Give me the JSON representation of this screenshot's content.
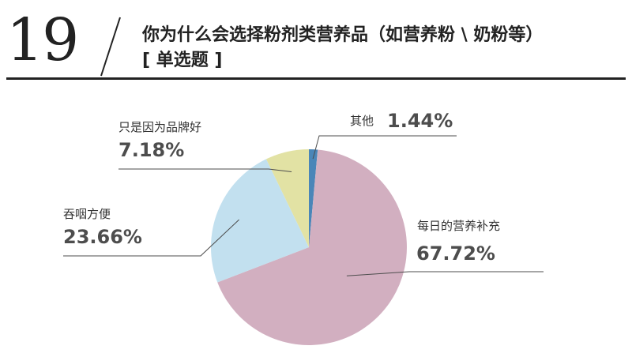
{
  "question": {
    "number": "19",
    "title_line1": "你为什么会选择粉剂类营养品（如营养粉 \\ 奶粉等）",
    "title_line2": "[ 单选题 ]"
  },
  "chart_data": {
    "type": "pie",
    "title": "你为什么会选择粉剂类营养品（如营养粉 \\ 奶粉等）",
    "subtitle": "[ 单选题 ]",
    "slices": [
      {
        "label": "其他",
        "value": 1.44,
        "display": "1.44%",
        "color": "#4a86b8"
      },
      {
        "label": "每日的营养补充",
        "value": 67.72,
        "display": "67.72%",
        "color": "#d2afc0"
      },
      {
        "label": "吞咽方便",
        "value": 23.66,
        "display": "23.66%",
        "color": "#c2e0ef"
      },
      {
        "label": "只是因为品牌好",
        "value": 7.18,
        "display": "7.18%",
        "color": "#e2e2a4"
      }
    ]
  }
}
